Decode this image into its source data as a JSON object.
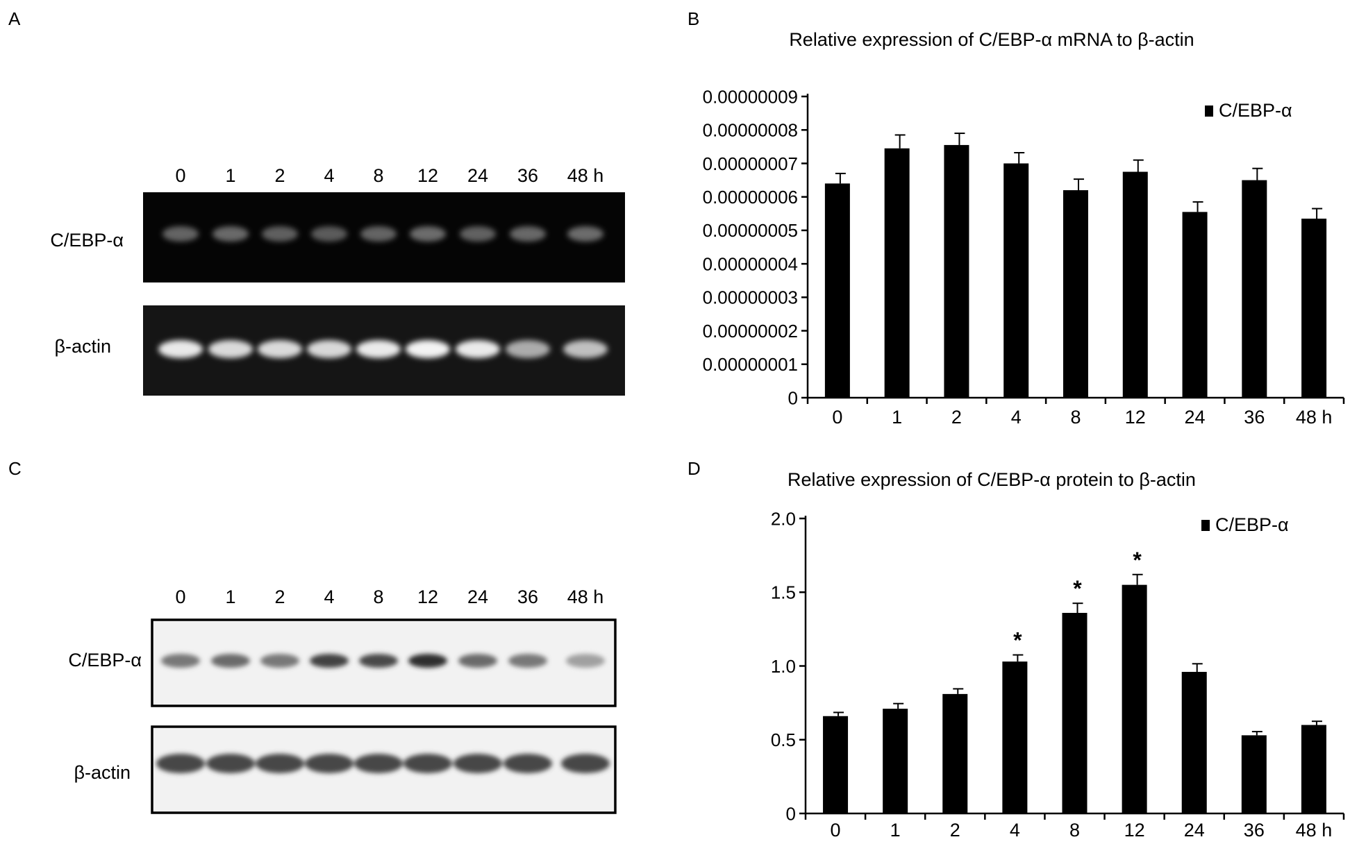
{
  "panels": {
    "a": {
      "letter": "A",
      "gel_lanes": [
        "0",
        "1",
        "2",
        "4",
        "8",
        "12",
        "24",
        "36",
        "48 h"
      ],
      "row_labels": [
        "C/EBP-α",
        "β-actin"
      ],
      "band_intensity": {
        "cebp": [
          0.3,
          0.33,
          0.28,
          0.26,
          0.3,
          0.34,
          0.29,
          0.32,
          0.34
        ],
        "actin": [
          0.95,
          0.88,
          0.88,
          0.87,
          0.96,
          1.0,
          0.96,
          0.65,
          0.75
        ]
      }
    },
    "c": {
      "letter": "C",
      "blot_lanes": [
        "0",
        "1",
        "2",
        "4",
        "8",
        "12",
        "24",
        "36",
        "48 h"
      ],
      "row_labels": [
        "C/EBP-α",
        "β-actin"
      ],
      "band_intensity": {
        "cebp": [
          0.55,
          0.62,
          0.55,
          0.82,
          0.78,
          0.92,
          0.62,
          0.55,
          0.35
        ],
        "actin": [
          0.8,
          0.8,
          0.8,
          0.8,
          0.8,
          0.8,
          0.8,
          0.8,
          0.8
        ]
      }
    }
  },
  "chart_data": [
    {
      "panel": "B",
      "type": "bar",
      "title": "Relative expression of C/EBP-α mRNA to β-actin",
      "categories": [
        "0",
        "1",
        "2",
        "4",
        "8",
        "12",
        "24",
        "36",
        "48 h"
      ],
      "series": [
        {
          "name": "C/EBP-α",
          "values": [
            6.4e-08,
            7.45e-08,
            7.55e-08,
            7e-08,
            6.2e-08,
            6.75e-08,
            5.55e-08,
            6.5e-08,
            5.35e-08
          ],
          "errors": [
            3e-09,
            4e-09,
            3.5e-09,
            3.2e-09,
            3.3e-09,
            3.5e-09,
            3e-09,
            3.5e-09,
            3e-09
          ]
        }
      ],
      "ylim": [
        0,
        9e-08
      ],
      "yticks": [
        "0",
        "0.00000001",
        "0.00000002",
        "0.00000003",
        "0.00000004",
        "0.00000005",
        "0.00000006",
        "0.00000007",
        "0.00000008",
        "0.00000009"
      ],
      "legend": "top-right",
      "grid": false,
      "color": "#000000"
    },
    {
      "panel": "D",
      "type": "bar",
      "title": "Relative expression of C/EBP-α protein to β-actin",
      "categories": [
        "0",
        "1",
        "2",
        "4",
        "8",
        "12",
        "24",
        "36",
        "48 h"
      ],
      "series": [
        {
          "name": "C/EBP-α",
          "values": [
            0.66,
            0.71,
            0.81,
            1.03,
            1.36,
            1.55,
            0.96,
            0.53,
            0.6
          ],
          "errors": [
            0.025,
            0.035,
            0.035,
            0.045,
            0.065,
            0.07,
            0.055,
            0.025,
            0.025
          ]
        }
      ],
      "ylim": [
        0,
        2.0
      ],
      "yticks": [
        "0",
        "0.5",
        "1.0",
        "1.5",
        "2.0"
      ],
      "significance": [
        "",
        "",
        "",
        "*",
        "*",
        "*",
        "",
        "",
        ""
      ],
      "legend": "top-right",
      "grid": false,
      "color": "#000000"
    }
  ]
}
